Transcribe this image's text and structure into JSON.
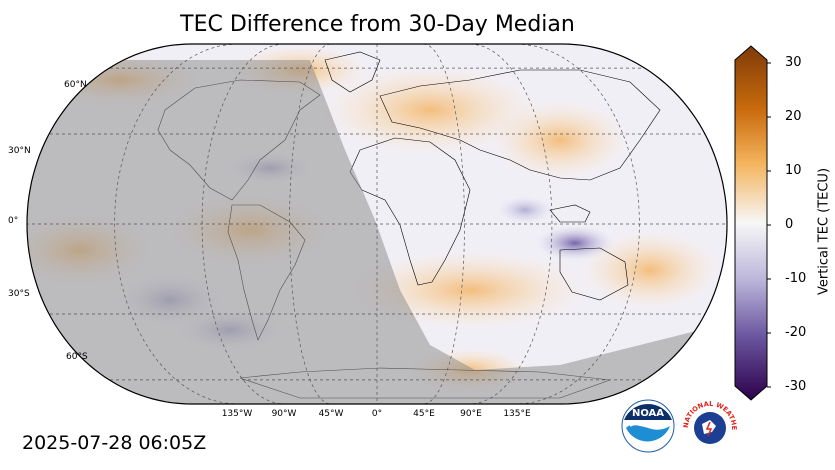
{
  "title": "TEC Difference from 30-Day Median",
  "timestamp": "2025-07-28 06:05Z",
  "map": {
    "projection": "robinson",
    "lat_labels": [
      "60°N",
      "30°N",
      "0°",
      "30°S",
      "60°S"
    ],
    "lon_labels": [
      "135°W",
      "90°W",
      "45°W",
      "0°",
      "45°E",
      "90°E",
      "135°E"
    ],
    "night_shade": true,
    "gridlines": "dashed"
  },
  "colorbar": {
    "label": "Vertical TEC (TECU)",
    "ticks": [
      "30",
      "20",
      "10",
      "0",
      "-10",
      "-20",
      "-30"
    ],
    "range": [
      -30,
      30
    ],
    "colormap": "PuOr_r",
    "colors": {
      "max": "#7f3b08",
      "high": "#e08214",
      "mid": "#f7f7f7",
      "low": "#8073ac",
      "min": "#2d004b"
    }
  },
  "logos": {
    "noaa": {
      "text": "NOAA",
      "color": "#1f5aa6"
    },
    "nws": {
      "text": "NATIONAL WEATHER SERVICE",
      "color": "#1c3f94"
    }
  }
}
